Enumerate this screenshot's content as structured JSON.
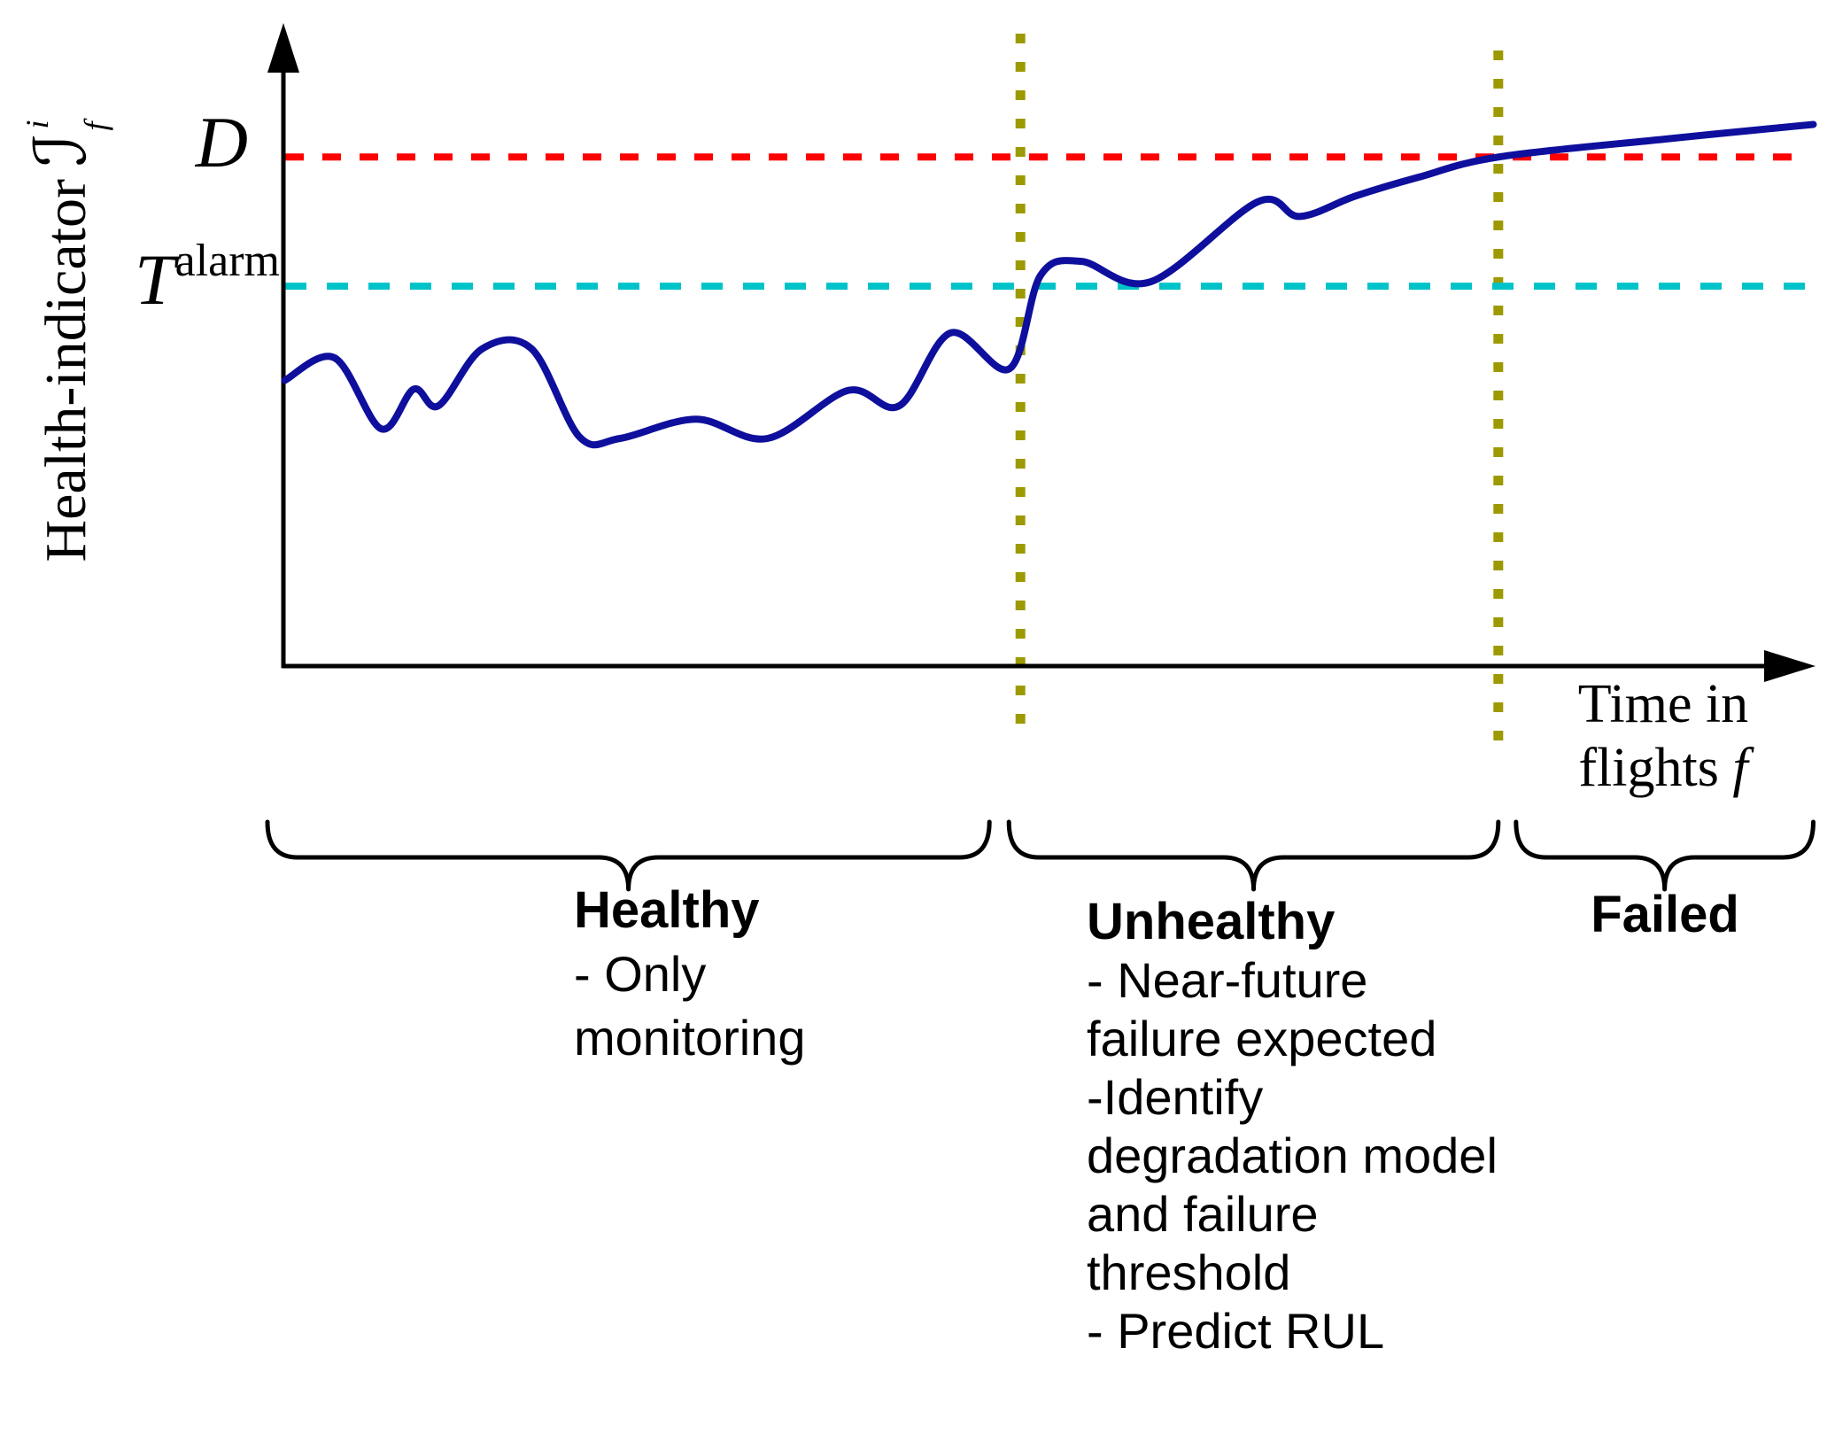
{
  "figure_labels": {
    "y_axis": {
      "text": "Health-indicator",
      "symbol": "ℐ",
      "superscript": "i",
      "subscript": "f"
    },
    "x_axis": {
      "line1": "Time in",
      "line2": "flights",
      "symbol": "f"
    },
    "failure_threshold": "D",
    "alarm_threshold": {
      "base": "T",
      "superscript": "alarm"
    }
  },
  "regions": {
    "healthy": {
      "title": "Healthy",
      "lines": [
        "- Only",
        "monitoring"
      ]
    },
    "unhealthy": {
      "title": "Unhealthy",
      "lines": [
        "- Near-future",
        "failure expected",
        "-Identify",
        "degradation model",
        "and failure",
        "threshold",
        "- Predict RUL"
      ]
    },
    "failed": {
      "title": "Failed"
    }
  },
  "colors": {
    "curve": "#0f0f9d",
    "failure_line": "#fe0000",
    "alarm_line": "#00c3c9",
    "phase_line": "#9c9a00",
    "axis": "#000000",
    "brace": "#000000"
  },
  "chart_data": {
    "type": "line",
    "title": "",
    "xlabel": "Time in flights f",
    "ylabel": "Health-indicator I^i_f",
    "numeric_axes": false,
    "x_range": [
      0,
      1
    ],
    "y_range": [
      0,
      1
    ],
    "grid": false,
    "legend": "none",
    "thresholds": [
      {
        "id": "failure",
        "label": "D",
        "y": 0.796,
        "color": "#fe0000",
        "line_style": "dashed"
      },
      {
        "id": "alarm",
        "label": "T^alarm",
        "y": 0.594,
        "color": "#00c3c9",
        "line_style": "dashed"
      }
    ],
    "phase_boundaries": [
      {
        "x": 0.475,
        "color": "#9c9a00",
        "line_style": "dotted"
      },
      {
        "x": 0.783,
        "color": "#9c9a00",
        "line_style": "dotted"
      }
    ],
    "regions": [
      {
        "label": "Healthy",
        "from": 0.0,
        "to": 0.475
      },
      {
        "label": "Unhealthy",
        "from": 0.475,
        "to": 0.783
      },
      {
        "label": "Failed",
        "from": 0.783,
        "to": 0.986
      }
    ],
    "series": [
      {
        "name": "health indicator",
        "color": "#0f0f9d",
        "points": [
          [
            0.001,
            0.447
          ],
          [
            0.033,
            0.482
          ],
          [
            0.063,
            0.371
          ],
          [
            0.084,
            0.433
          ],
          [
            0.1,
            0.407
          ],
          [
            0.128,
            0.496
          ],
          [
            0.16,
            0.496
          ],
          [
            0.191,
            0.358
          ],
          [
            0.217,
            0.356
          ],
          [
            0.266,
            0.386
          ],
          [
            0.312,
            0.356
          ],
          [
            0.364,
            0.431
          ],
          [
            0.397,
            0.407
          ],
          [
            0.43,
            0.521
          ],
          [
            0.468,
            0.465
          ],
          [
            0.488,
            0.611
          ],
          [
            0.514,
            0.633
          ],
          [
            0.559,
            0.601
          ],
          [
            0.628,
            0.726
          ],
          [
            0.655,
            0.703
          ],
          [
            0.691,
            0.735
          ],
          [
            0.731,
            0.764
          ],
          [
            0.783,
            0.796
          ],
          [
            0.89,
            0.824
          ],
          [
            0.986,
            0.847
          ]
        ]
      }
    ]
  }
}
